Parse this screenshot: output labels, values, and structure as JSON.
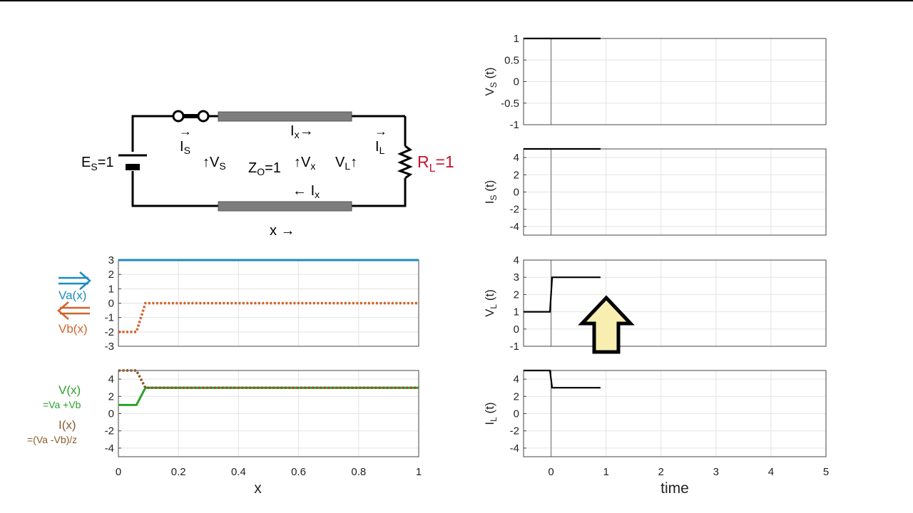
{
  "circuit": {
    "source": {
      "label_main": "E",
      "label_sub": "S",
      "label_tail": "=1"
    },
    "load": {
      "label_main": "R",
      "label_sub": "L",
      "label_tail": "=1",
      "color": "#c8102e"
    },
    "impedance": {
      "label_main": "Z",
      "label_sub": "O",
      "label_tail": "=1"
    },
    "is_label": {
      "main": "I",
      "sub": "S"
    },
    "vs_label": {
      "main": "V",
      "sub": "S"
    },
    "ix_top": {
      "main": "I",
      "sub": "x"
    },
    "vx_label": {
      "main": "V",
      "sub": "x"
    },
    "vl_label": {
      "main": "V",
      "sub": "L"
    },
    "il_label": {
      "main": "I",
      "sub": "L"
    },
    "ix_bot": {
      "main": "I",
      "sub": "x"
    },
    "x_axis_label": "x →"
  },
  "legends": {
    "va": {
      "text": "Va(x)",
      "color": "#1f8ac0"
    },
    "vb": {
      "text": "Vb(x)",
      "color": "#d2632a"
    },
    "v": {
      "text": "V(x)",
      "sub": "=Va +Vb",
      "color": "#2ca02c"
    },
    "i": {
      "text": "I(x)",
      "sub": "=(Va -Vb)/z",
      "color": "#8b5a2b"
    }
  },
  "chart_data": [
    {
      "id": "waves",
      "type": "line",
      "xlim": [
        0,
        1
      ],
      "ylim": [
        -3,
        3
      ],
      "yticks": [
        -3,
        -2,
        -1,
        0,
        1,
        2,
        3
      ],
      "grid": true,
      "series": [
        {
          "name": "Va(x)",
          "color": "#1f8ac0",
          "style": "solid",
          "x": [
            0,
            1
          ],
          "y": [
            3,
            3
          ]
        },
        {
          "name": "Vb(x)",
          "color": "#d2632a",
          "style": "dotted",
          "x": [
            0,
            0.06,
            0.09,
            1
          ],
          "y": [
            -2,
            -2,
            0,
            0
          ]
        }
      ]
    },
    {
      "id": "vi",
      "type": "line",
      "xlim": [
        0,
        1
      ],
      "ylim": [
        -5,
        5
      ],
      "yticks": [
        -4,
        -2,
        0,
        2,
        4
      ],
      "xticks": [
        "0",
        "0.2",
        "0.4",
        "0.6",
        "0.8",
        "1"
      ],
      "xlabel": "x",
      "grid": true,
      "series": [
        {
          "name": "V(x)",
          "color": "#2ca02c",
          "style": "solid",
          "x": [
            0,
            0.06,
            0.09,
            1
          ],
          "y": [
            1,
            1,
            3,
            3
          ]
        },
        {
          "name": "I(x)",
          "color": "#8b5a2b",
          "style": "dotted",
          "x": [
            0,
            0.06,
            0.09,
            1
          ],
          "y": [
            5,
            5,
            3,
            3
          ]
        }
      ]
    },
    {
      "id": "vs",
      "type": "line",
      "xlim": [
        -0.5,
        5
      ],
      "ylim": [
        -1,
        1
      ],
      "yticks": [
        "-1",
        "-0.5",
        "0",
        "0.5",
        "1"
      ],
      "ylabel_main": "V",
      "ylabel_sub": "S",
      "ylabel_tail": " (t)",
      "grid": true,
      "series": [
        {
          "color": "#000000",
          "x": [
            -0.5,
            0.9
          ],
          "y": [
            1,
            1
          ]
        }
      ]
    },
    {
      "id": "is",
      "type": "line",
      "xlim": [
        -0.5,
        5
      ],
      "ylim": [
        -5,
        5
      ],
      "yticks": [
        -4,
        -2,
        0,
        2,
        4
      ],
      "ylabel_main": "I",
      "ylabel_sub": "S",
      "ylabel_tail": " (t)",
      "grid": true,
      "series": [
        {
          "color": "#000000",
          "x": [
            -0.5,
            0.9
          ],
          "y": [
            5,
            5
          ]
        }
      ]
    },
    {
      "id": "vl",
      "type": "line",
      "xlim": [
        -0.5,
        5
      ],
      "ylim": [
        -1,
        4
      ],
      "yticks": [
        -1,
        0,
        1,
        2,
        3,
        4
      ],
      "ylabel_main": "V",
      "ylabel_sub": "L",
      "ylabel_tail": " (t)",
      "grid": true,
      "series": [
        {
          "color": "#000000",
          "x": [
            -0.5,
            -0.02,
            0.02,
            0.9
          ],
          "y": [
            1,
            1,
            3,
            3
          ]
        }
      ]
    },
    {
      "id": "il",
      "type": "line",
      "xlim": [
        -0.5,
        5
      ],
      "ylim": [
        -5,
        5
      ],
      "yticks": [
        -4,
        -2,
        0,
        2,
        4
      ],
      "xticks": [
        "0",
        "1",
        "2",
        "3",
        "4",
        "5"
      ],
      "xlabel": "time",
      "ylabel_main": "I",
      "ylabel_sub": "L",
      "ylabel_tail": " (t)",
      "grid": true,
      "series": [
        {
          "color": "#000000",
          "x": [
            -0.5,
            -0.02,
            0.02,
            0.9
          ],
          "y": [
            5,
            5,
            3,
            3
          ]
        }
      ]
    }
  ],
  "arrow_color": "#f7eeb0"
}
